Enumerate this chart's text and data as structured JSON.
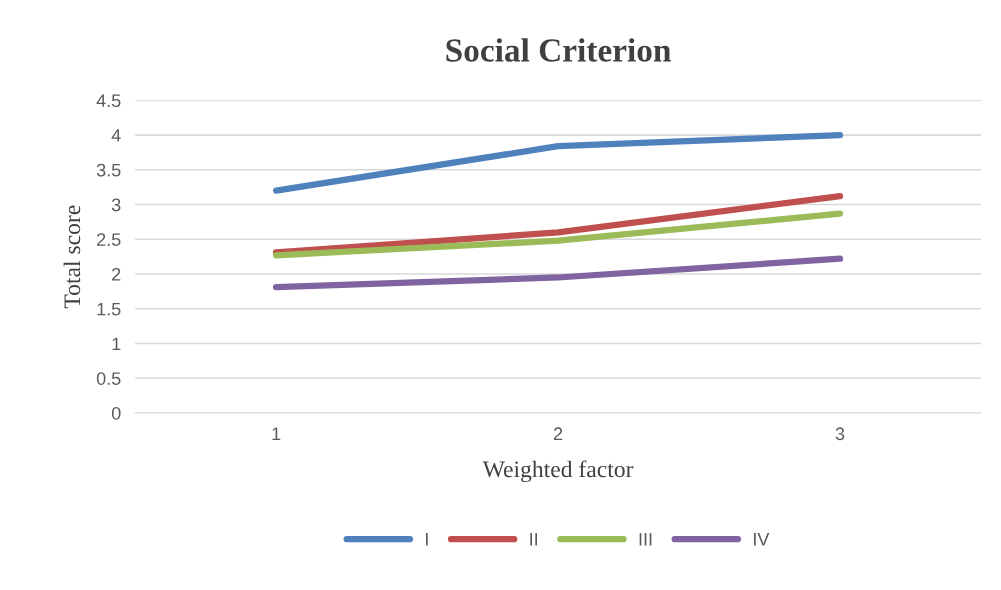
{
  "chart_data": {
    "type": "line",
    "title": "Social Criterion",
    "xlabel": "Weighted factor",
    "ylabel": "Total score",
    "categories": [
      "1",
      "2",
      "3"
    ],
    "series": [
      {
        "name": "I",
        "color": "#4f81bd",
        "values": [
          3.2,
          3.84,
          4.0
        ]
      },
      {
        "name": "II",
        "color": "#c0504d",
        "values": [
          2.31,
          2.6,
          3.12
        ]
      },
      {
        "name": "III",
        "color": "#9bbb59",
        "values": [
          2.27,
          2.48,
          2.87
        ]
      },
      {
        "name": "IV",
        "color": "#8064a2",
        "values": [
          1.81,
          1.95,
          2.22
        ]
      }
    ],
    "ylim": [
      0,
      4.5
    ],
    "yticks": [
      0,
      0.5,
      1,
      1.5,
      2,
      2.5,
      3,
      3.5,
      4,
      4.5
    ],
    "grid": "y",
    "legend": "bottom",
    "marker": "none",
    "line_style": "solid"
  }
}
